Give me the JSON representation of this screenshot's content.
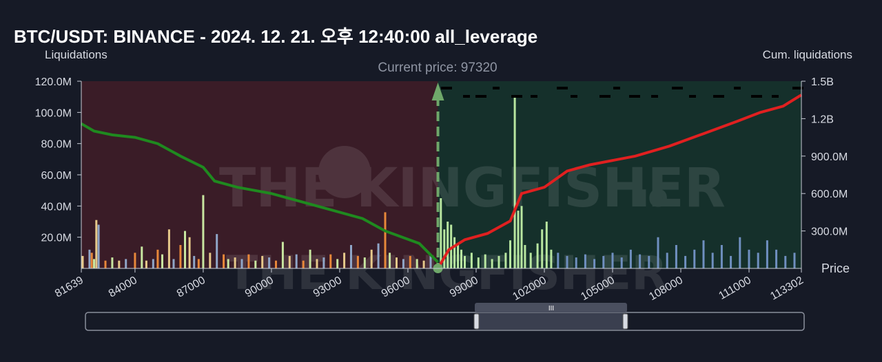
{
  "chart_data": {
    "type": "bar",
    "title": "BTC/USDT: BINANCE - 2024. 12. 21. 오후 12:40:00 all_leverage",
    "ylabel_left": "Liquidations",
    "ylabel_right": "Cum. liquidations",
    "xlabel": "Price",
    "current_price_label": "Current price: 97320",
    "current_price": 97320,
    "xlim": [
      81639,
      113302
    ],
    "ylim_left": [
      0,
      120000000
    ],
    "ylim_right": [
      0,
      1500000000
    ],
    "x_ticks": [
      "81639",
      "84000",
      "87000",
      "90000",
      "93000",
      "96000",
      "99000",
      "102000",
      "105000",
      "108000",
      "111000",
      "113302"
    ],
    "x_tick_values": [
      81639,
      84000,
      87000,
      90000,
      93000,
      96000,
      99000,
      102000,
      105000,
      108000,
      111000,
      113302
    ],
    "y_left_ticks": [
      "20.0M",
      "40.0M",
      "60.0M",
      "80.0M",
      "100.0M",
      "120.0M"
    ],
    "y_left_tick_values": [
      20000000,
      40000000,
      60000000,
      80000000,
      100000000,
      120000000
    ],
    "y_right_ticks": [
      "300.0M",
      "600.0M",
      "900.0M",
      "1.2B",
      "1.5B"
    ],
    "y_right_tick_values": [
      300000000,
      600000000,
      900000000,
      1200000000,
      1500000000
    ],
    "series": [
      {
        "kind": "cumulative_short_liquidations",
        "color": "#1f8a1f",
        "points": [
          [
            81639,
            1160000000
          ],
          [
            82200,
            1100000000
          ],
          [
            83000,
            1070000000
          ],
          [
            84000,
            1050000000
          ],
          [
            85000,
            1000000000
          ],
          [
            86000,
            900000000
          ],
          [
            87000,
            810000000
          ],
          [
            87500,
            700000000
          ],
          [
            88500,
            650000000
          ],
          [
            90000,
            600000000
          ],
          [
            92000,
            500000000
          ],
          [
            94000,
            400000000
          ],
          [
            95000,
            300000000
          ],
          [
            96500,
            200000000
          ],
          [
            97320,
            50000000
          ]
        ]
      },
      {
        "kind": "cumulative_long_liquidations",
        "color": "#e02020",
        "points": [
          [
            97320,
            0
          ],
          [
            97800,
            150000000
          ],
          [
            98500,
            230000000
          ],
          [
            99500,
            280000000
          ],
          [
            100500,
            380000000
          ],
          [
            101000,
            600000000
          ],
          [
            102000,
            650000000
          ],
          [
            103000,
            780000000
          ],
          [
            104000,
            830000000
          ],
          [
            106000,
            900000000
          ],
          [
            107500,
            980000000
          ],
          [
            109000,
            1080000000
          ],
          [
            110500,
            1180000000
          ],
          [
            111500,
            1250000000
          ],
          [
            112500,
            1300000000
          ],
          [
            113302,
            1390000000
          ]
        ]
      },
      {
        "kind": "liquidation_bars_below_price",
        "colors": [
          "#e6c98a",
          "#8fa6c8",
          "#e8883a",
          "#c8e6a0"
        ],
        "points": [
          [
            81700,
            8000000
          ],
          [
            82000,
            12000000
          ],
          [
            82100,
            10000000
          ],
          [
            82200,
            6000000
          ],
          [
            82300,
            31000000
          ],
          [
            82400,
            28000000
          ],
          [
            82700,
            5000000
          ],
          [
            83000,
            7000000
          ],
          [
            83300,
            5000000
          ],
          [
            83600,
            6000000
          ],
          [
            84000,
            10000000
          ],
          [
            84300,
            14000000
          ],
          [
            84500,
            5000000
          ],
          [
            84800,
            6000000
          ],
          [
            85000,
            12000000
          ],
          [
            85200,
            9000000
          ],
          [
            85500,
            25000000
          ],
          [
            85700,
            6000000
          ],
          [
            86000,
            15000000
          ],
          [
            86200,
            24000000
          ],
          [
            86400,
            20000000
          ],
          [
            86600,
            8000000
          ],
          [
            86800,
            6000000
          ],
          [
            87000,
            47000000
          ],
          [
            87300,
            10000000
          ],
          [
            87600,
            22000000
          ],
          [
            87900,
            9000000
          ],
          [
            88100,
            6000000
          ],
          [
            88400,
            7000000
          ],
          [
            88700,
            6000000
          ],
          [
            89000,
            9000000
          ],
          [
            89300,
            5000000
          ],
          [
            89600,
            8000000
          ],
          [
            89900,
            7000000
          ],
          [
            90200,
            5000000
          ],
          [
            90500,
            17000000
          ],
          [
            90800,
            8000000
          ],
          [
            91100,
            9000000
          ],
          [
            91400,
            5000000
          ],
          [
            91700,
            12000000
          ],
          [
            92000,
            6000000
          ],
          [
            92300,
            7000000
          ],
          [
            92600,
            9000000
          ],
          [
            92900,
            6000000
          ],
          [
            93200,
            10000000
          ],
          [
            93500,
            15000000
          ],
          [
            93800,
            8000000
          ],
          [
            94100,
            7000000
          ],
          [
            94400,
            12000000
          ],
          [
            94700,
            16000000
          ],
          [
            95000,
            36000000
          ],
          [
            95200,
            10000000
          ],
          [
            95500,
            7000000
          ],
          [
            95800,
            6000000
          ],
          [
            96100,
            8000000
          ],
          [
            96400,
            6000000
          ],
          [
            96700,
            5000000
          ],
          [
            97000,
            8000000
          ]
        ]
      },
      {
        "kind": "liquidation_bars_above_price",
        "colors": [
          "#b8e6a0",
          "#6f8fc0"
        ],
        "points": [
          [
            97450,
            45000000
          ],
          [
            97600,
            25000000
          ],
          [
            97750,
            30000000
          ],
          [
            97900,
            28000000
          ],
          [
            98050,
            20000000
          ],
          [
            98200,
            15000000
          ],
          [
            98350,
            12000000
          ],
          [
            98500,
            8000000
          ],
          [
            98800,
            10000000
          ],
          [
            99100,
            7000000
          ],
          [
            99400,
            9000000
          ],
          [
            99700,
            6000000
          ],
          [
            100000,
            8000000
          ],
          [
            100300,
            10000000
          ],
          [
            100500,
            18000000
          ],
          [
            100700,
            110000000
          ],
          [
            100850,
            37000000
          ],
          [
            101000,
            40000000
          ],
          [
            101150,
            15000000
          ],
          [
            101400,
            10000000
          ],
          [
            101700,
            16000000
          ],
          [
            101900,
            25000000
          ],
          [
            102100,
            30000000
          ],
          [
            102300,
            12000000
          ],
          [
            102600,
            10000000
          ],
          [
            103000,
            8000000
          ],
          [
            103400,
            7000000
          ],
          [
            103800,
            9000000
          ],
          [
            104200,
            6000000
          ],
          [
            104600,
            8000000
          ],
          [
            105000,
            10000000
          ],
          [
            105400,
            7000000
          ],
          [
            105800,
            12000000
          ],
          [
            106200,
            9000000
          ],
          [
            106600,
            8000000
          ],
          [
            107000,
            20000000
          ],
          [
            107400,
            10000000
          ],
          [
            107800,
            15000000
          ],
          [
            108200,
            8000000
          ],
          [
            108600,
            12000000
          ],
          [
            109000,
            18000000
          ],
          [
            109400,
            10000000
          ],
          [
            109800,
            15000000
          ],
          [
            110200,
            8000000
          ],
          [
            110600,
            20000000
          ],
          [
            111000,
            12000000
          ],
          [
            111400,
            10000000
          ],
          [
            111800,
            18000000
          ],
          [
            112200,
            12000000
          ],
          [
            112600,
            8000000
          ],
          [
            113000,
            10000000
          ]
        ]
      }
    ],
    "grid": false,
    "legend": "none"
  },
  "watermark": "THE KINGFISHER",
  "watermark_suffix": ".IO",
  "scrollbar_grip": "III",
  "colors": {
    "background": "#161a26",
    "short_fill": "#3a1c27",
    "long_fill": "#15302b"
  }
}
